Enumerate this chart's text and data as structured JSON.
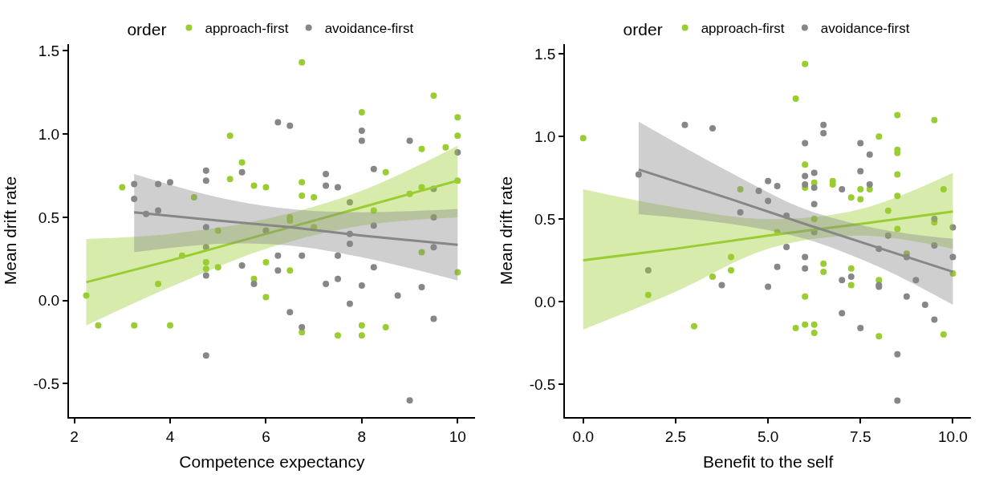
{
  "chart_data": [
    {
      "type": "scatter",
      "xlabel": "Competence expectancy",
      "ylabel": "Mean drift rate",
      "legend_title": "order",
      "legend": "top",
      "marker": "circle",
      "grid": false,
      "xlim": [
        1.89,
        10.36
      ],
      "xticks": [
        2,
        4,
        6,
        8,
        10
      ],
      "ylim": [
        -0.7,
        1.54
      ],
      "yticks": [
        {
          "value": -0.5,
          "label": "-0.5"
        },
        {
          "value": 0,
          "label": "0.0"
        },
        {
          "value": 0.5,
          "label": "0.5"
        },
        {
          "value": 1,
          "label": "1.0"
        },
        {
          "value": 1.5,
          "label": "1.5"
        }
      ],
      "series": [
        {
          "name": "approach-first",
          "color": "#9acd32",
          "x": [
            2.25,
            2.5,
            3.0,
            3.25,
            3.75,
            4.0,
            4.25,
            4.5,
            4.75,
            4.75,
            5.0,
            5.0,
            5.25,
            5.25,
            5.5,
            5.75,
            5.75,
            6.0,
            6.0,
            6.0,
            6.75,
            6.75,
            6.75,
            7.0,
            6.5,
            6.5,
            7.0,
            6.5,
            6.75,
            7.5,
            8.0,
            8.0,
            8.0,
            8.25,
            8.5,
            8.5,
            9.0,
            9.25,
            9.25,
            9.25,
            9.5,
            9.75,
            10.0,
            10.0,
            10.0,
            10.0
          ],
          "values": [
            0.03,
            -0.15,
            0.68,
            -0.15,
            0.1,
            -0.15,
            0.27,
            0.62,
            0.23,
            0.19,
            0.42,
            0.2,
            0.99,
            0.73,
            0.83,
            0.69,
            0.13,
            0.68,
            0.23,
            0.02,
            1.43,
            0.71,
            0.63,
            0.62,
            0.5,
            0.48,
            0.44,
            0.18,
            -0.19,
            -0.21,
            1.13,
            -0.15,
            -0.21,
            0.54,
            0.77,
            -0.16,
            0.64,
            0.91,
            0.68,
            0.29,
            1.23,
            0.92,
            1.1,
            0.99,
            0.72,
            0.17
          ]
        },
        {
          "name": "avoidance-first",
          "color": "#878787",
          "x": [
            3.25,
            3.25,
            3.5,
            3.75,
            3.75,
            4.0,
            4.75,
            4.75,
            4.75,
            4.75,
            4.75,
            4.75,
            5.5,
            5.5,
            5.75,
            6.0,
            6.25,
            6.5,
            6.25,
            6.25,
            6.5,
            6.75,
            6.75,
            7.25,
            7.25,
            7.25,
            7.5,
            7.5,
            7.5,
            7.75,
            7.75,
            7.75,
            7.75,
            8.0,
            8.0,
            8.0,
            8.25,
            8.25,
            8.25,
            8.75,
            9.0,
            9.0,
            9.25,
            9.5,
            9.5,
            9.5,
            9.5,
            10.0
          ],
          "values": [
            0.7,
            0.61,
            0.52,
            0.7,
            0.54,
            0.71,
            0.78,
            0.72,
            0.44,
            0.32,
            0.15,
            -0.33,
            0.77,
            0.21,
            0.1,
            0.42,
            1.07,
            1.05,
            0.27,
            0.18,
            -0.07,
            0.27,
            -0.16,
            0.76,
            0.69,
            0.1,
            0.68,
            0.27,
            0.13,
            0.59,
            0.4,
            0.34,
            -0.02,
            1.02,
            0.96,
            0.09,
            0.79,
            0.45,
            0.2,
            0.03,
            0.96,
            -0.6,
            0.08,
            0.67,
            0.5,
            0.32,
            -0.11,
            0.89
          ]
        },
        {
          "color": "#9acd32",
          "type": "line",
          "marker": "none",
          "x": [
            2.25,
            4,
            6,
            8,
            10
          ],
          "values": [
            0.11,
            0.24,
            0.4,
            0.56,
            0.72
          ],
          "lower": [
            -0.15,
            0.08,
            0.31,
            0.45,
            0.5
          ],
          "upper": [
            0.37,
            0.4,
            0.49,
            0.66,
            0.93
          ]
        },
        {
          "color": "#878787",
          "type": "line",
          "marker": "none",
          "x": [
            3.25,
            5,
            6.5,
            8,
            10
          ],
          "values": [
            0.53,
            0.48,
            0.44,
            0.39,
            0.335
          ],
          "lower": [
            0.29,
            0.34,
            0.33,
            0.26,
            0.12
          ],
          "upper": [
            0.76,
            0.62,
            0.55,
            0.53,
            0.55
          ]
        }
      ]
    },
    {
      "type": "scatter",
      "xlabel": "Benefit to the self",
      "ylabel": "Mean drift rate",
      "legend_title": "order",
      "legend": "top",
      "marker": "circle",
      "grid": false,
      "xlim": [
        -0.49,
        10.49
      ],
      "xticks": [
        {
          "value": 0,
          "label": "0.0"
        },
        {
          "value": 2.5,
          "label": "2.5"
        },
        {
          "value": 5,
          "label": "5.0"
        },
        {
          "value": 7.5,
          "label": "7.5"
        },
        {
          "value": 10,
          "label": "10.0"
        }
      ],
      "ylim": [
        -0.7,
        1.56
      ],
      "yticks": [
        {
          "value": -0.5,
          "label": "-0.5"
        },
        {
          "value": 0,
          "label": "0.0"
        },
        {
          "value": 0.5,
          "label": "0.5"
        },
        {
          "value": 1,
          "label": "1.0"
        },
        {
          "value": 1.5,
          "label": "1.5"
        }
      ],
      "series": [
        {
          "name": "approach-first",
          "color": "#9acd32",
          "x": [
            0.0,
            1.76,
            3.0,
            3.5,
            4.0,
            4.0,
            4.25,
            6.0,
            5.75,
            8.5,
            9.5,
            8.0,
            8.5,
            8.5,
            6.0,
            8.5,
            6.25,
            6.75,
            6.75,
            6.0,
            7.5,
            7.5,
            7.75,
            7.25,
            9.75,
            8.5,
            8.25,
            6.25,
            9.5,
            8.5,
            5.25,
            8.75,
            6.5,
            6.5,
            7.25,
            7.25,
            8.0,
            10.0,
            6.0,
            5.75,
            6.0,
            6.25,
            6.25,
            8.0,
            9.75
          ],
          "values": [
            0.99,
            0.04,
            -0.15,
            0.15,
            0.27,
            0.19,
            0.68,
            1.44,
            1.23,
            1.13,
            1.1,
            1.0,
            0.92,
            0.9,
            0.83,
            0.77,
            0.72,
            0.73,
            0.71,
            0.69,
            0.68,
            0.62,
            0.68,
            0.63,
            0.68,
            0.64,
            0.55,
            0.5,
            0.48,
            0.44,
            0.42,
            0.29,
            0.23,
            0.18,
            0.2,
            0.1,
            0.13,
            0.17,
            0.03,
            -0.16,
            -0.14,
            -0.14,
            -0.19,
            -0.21,
            -0.2
          ]
        },
        {
          "name": "avoidance-first",
          "color": "#878787",
          "x": [
            1.76,
            4.25,
            1.5,
            2.75,
            3.5,
            3.75,
            4.75,
            5.0,
            5.0,
            5.0,
            5.25,
            5.25,
            6.5,
            6.5,
            6.0,
            7.5,
            7.75,
            7.5,
            6.0,
            6.0,
            6.25,
            6.25,
            7.75,
            7.0,
            6.25,
            5.5,
            5.5,
            6.25,
            9.5,
            10.0,
            8.25,
            8.0,
            8.75,
            9.5,
            10.0,
            6.0,
            6.0,
            7.0,
            7.25,
            8.0,
            8.0,
            9.0,
            8.75,
            9.25,
            9.5,
            7.0,
            7.5,
            8.5,
            8.5
          ],
          "values": [
            0.19,
            0.54,
            0.77,
            1.07,
            1.05,
            0.1,
            0.67,
            0.73,
            0.61,
            0.09,
            0.7,
            0.21,
            1.07,
            1.02,
            0.96,
            0.96,
            0.89,
            0.79,
            0.76,
            0.71,
            0.78,
            0.69,
            0.71,
            0.68,
            0.59,
            0.52,
            0.33,
            0.42,
            0.5,
            0.45,
            0.4,
            0.32,
            0.27,
            0.34,
            0.27,
            0.27,
            0.2,
            0.13,
            0.15,
            0.1,
            0.09,
            0.13,
            0.03,
            -0.02,
            -0.11,
            -0.07,
            -0.16,
            -0.32,
            -0.6
          ]
        },
        {
          "color": "#9acd32",
          "type": "line",
          "marker": "none",
          "x": [
            0,
            2.5,
            5,
            7.5,
            10
          ],
          "values": [
            0.25,
            0.32,
            0.4,
            0.47,
            0.545
          ],
          "lower": [
            -0.17,
            0.06,
            0.32,
            0.4,
            0.32
          ],
          "upper": [
            0.68,
            0.57,
            0.5,
            0.56,
            0.78
          ]
        },
        {
          "color": "#878787",
          "type": "line",
          "marker": "none",
          "x": [
            1.5,
            4,
            6,
            8,
            10
          ],
          "values": [
            0.8,
            0.62,
            0.47,
            0.325,
            0.18
          ],
          "lower": [
            0.53,
            0.47,
            0.38,
            0.21,
            -0.02
          ],
          "upper": [
            1.09,
            0.78,
            0.56,
            0.44,
            0.38
          ]
        }
      ]
    }
  ]
}
